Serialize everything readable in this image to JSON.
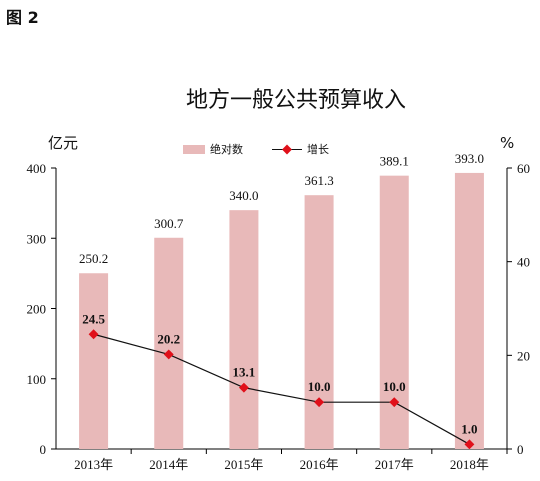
{
  "figure_label": "图 2",
  "colors": {
    "bar": "#e8b9b9",
    "line": "#111111",
    "marker": "#e0101a",
    "axis": "#000000"
  },
  "chart_data": {
    "type": "bar",
    "title": "地方一般公共预算收入",
    "categories": [
      "2013年",
      "2014年",
      "2015年",
      "2016年",
      "2017年",
      "2018年"
    ],
    "series": [
      {
        "name": "绝对数",
        "type": "bar",
        "axis": "left",
        "values": [
          250.2,
          300.7,
          340.0,
          361.3,
          389.1,
          393.0
        ],
        "labels": [
          "250.2",
          "300.7",
          "340.0",
          "361.3",
          "389.1",
          "393.0"
        ]
      },
      {
        "name": "增长",
        "type": "line",
        "axis": "right",
        "values": [
          24.5,
          20.2,
          13.1,
          10.0,
          10.0,
          1.0
        ],
        "labels": [
          "24.5",
          "20.2",
          "13.1",
          "10.0",
          "10.0",
          "1.0"
        ]
      }
    ],
    "y_left": {
      "label": "亿元",
      "range": [
        0,
        400
      ],
      "ticks": [
        0,
        100,
        200,
        300,
        400
      ]
    },
    "y_right": {
      "label": "%",
      "range": [
        0,
        60
      ],
      "ticks": [
        0,
        20,
        40,
        60
      ]
    },
    "legend_position": "top-center",
    "grid": false
  }
}
